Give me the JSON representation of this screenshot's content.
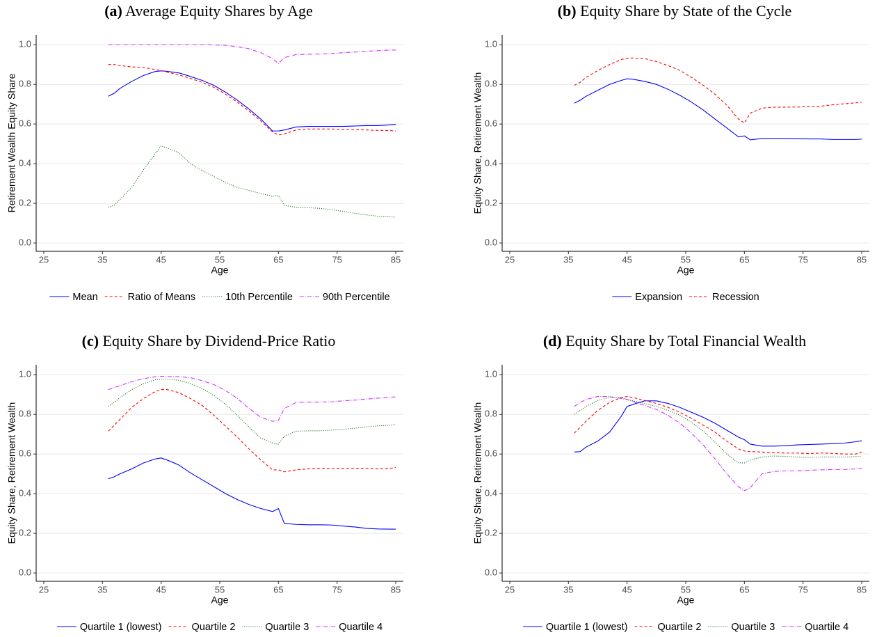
{
  "chart_data": [
    {
      "type": "line",
      "label": "(a)",
      "title": "Average Equity Shares by Age",
      "x_label": "Age",
      "y_label": "Retirement Wealth Equity Share",
      "x": [
        36,
        37,
        38,
        40,
        42,
        44,
        45,
        46,
        48,
        50,
        52,
        54,
        56,
        58,
        60,
        62,
        64,
        65,
        66,
        68,
        70,
        72,
        74,
        76,
        78,
        80,
        82,
        84,
        85
      ],
      "series": [
        {
          "name": "Mean",
          "color": "#0000ff",
          "linestyle": "solid",
          "values": [
            0.74,
            0.755,
            0.78,
            0.815,
            0.845,
            0.865,
            0.868,
            0.866,
            0.858,
            0.84,
            0.82,
            0.795,
            0.76,
            0.72,
            0.675,
            0.625,
            0.565,
            0.565,
            0.57,
            0.585,
            0.588,
            0.588,
            0.588,
            0.588,
            0.59,
            0.592,
            0.592,
            0.596,
            0.598
          ]
        },
        {
          "name": "Ratio of Means",
          "color": "#ff0000",
          "linestyle": "dashed",
          "values": [
            0.9,
            0.9,
            0.895,
            0.888,
            0.885,
            0.875,
            0.87,
            0.862,
            0.848,
            0.83,
            0.81,
            0.785,
            0.75,
            0.71,
            0.665,
            0.615,
            0.56,
            0.545,
            0.55,
            0.57,
            0.575,
            0.575,
            0.575,
            0.573,
            0.572,
            0.57,
            0.568,
            0.567,
            0.565
          ]
        },
        {
          "name": "10th Percentile",
          "color": "#006400",
          "linestyle": "dotted",
          "values": [
            0.18,
            0.19,
            0.22,
            0.28,
            0.37,
            0.45,
            0.49,
            0.48,
            0.455,
            0.4,
            0.365,
            0.335,
            0.305,
            0.28,
            0.265,
            0.25,
            0.235,
            0.24,
            0.19,
            0.18,
            0.178,
            0.175,
            0.168,
            0.16,
            0.15,
            0.142,
            0.135,
            0.132,
            0.13
          ]
        },
        {
          "name": "90th Percentile",
          "color": "#cc33ff",
          "linestyle": "dashdot",
          "values": [
            1.0,
            1.0,
            1.0,
            1.0,
            1.0,
            1.0,
            1.0,
            1.0,
            1.0,
            1.0,
            1.0,
            0.999,
            0.997,
            0.99,
            0.98,
            0.96,
            0.93,
            0.905,
            0.935,
            0.95,
            0.952,
            0.953,
            0.955,
            0.96,
            0.963,
            0.967,
            0.97,
            0.973,
            0.973
          ]
        }
      ],
      "xlim": [
        23.7,
        86.3
      ],
      "ylim": [
        -0.042,
        1.05
      ],
      "xticks": [
        25,
        35,
        45,
        55,
        65,
        75,
        85
      ],
      "yticks": [
        {
          "value": 0,
          "label": "0.0"
        },
        0.2,
        0.4,
        0.6,
        0.8,
        {
          "value": 1,
          "label": "1.0"
        }
      ],
      "grid": true,
      "legend": "bottom"
    },
    {
      "type": "line",
      "label": "(b)",
      "title": "Equity Share by State of the Cycle",
      "x_label": "Age",
      "y_label": "Equity Share, Retirement Wealth",
      "x": [
        36,
        37,
        38,
        40,
        42,
        44,
        45,
        46,
        48,
        50,
        52,
        54,
        56,
        58,
        60,
        62,
        64,
        65,
        66,
        68,
        70,
        72,
        74,
        76,
        78,
        80,
        82,
        84,
        85
      ],
      "series": [
        {
          "name": "Expansion",
          "color": "#0000ff",
          "linestyle": "solid",
          "values": [
            0.705,
            0.72,
            0.74,
            0.77,
            0.8,
            0.82,
            0.828,
            0.826,
            0.815,
            0.8,
            0.775,
            0.745,
            0.71,
            0.67,
            0.625,
            0.58,
            0.535,
            0.54,
            0.52,
            0.527,
            0.527,
            0.527,
            0.526,
            0.525,
            0.525,
            0.522,
            0.522,
            0.522,
            0.524
          ]
        },
        {
          "name": "Recession",
          "color": "#ff0000",
          "linestyle": "dashed",
          "values": [
            0.795,
            0.81,
            0.835,
            0.87,
            0.9,
            0.925,
            0.932,
            0.933,
            0.93,
            0.915,
            0.895,
            0.87,
            0.835,
            0.795,
            0.75,
            0.695,
            0.625,
            0.605,
            0.655,
            0.68,
            0.685,
            0.685,
            0.686,
            0.688,
            0.69,
            0.697,
            0.702,
            0.707,
            0.71
          ]
        }
      ],
      "xlim": [
        23.7,
        86.3
      ],
      "ylim": [
        -0.042,
        1.05
      ],
      "xticks": [
        25,
        35,
        45,
        55,
        65,
        75,
        85
      ],
      "yticks": [
        {
          "value": 0,
          "label": "0.0"
        },
        0.2,
        0.4,
        0.6,
        0.8,
        {
          "value": 1,
          "label": "1.0"
        }
      ],
      "grid": true,
      "legend": "bottom"
    },
    {
      "type": "line",
      "label": "(c)",
      "title": "Equity Share by Dividend-Price Ratio",
      "x_label": "Age",
      "y_label": "Equity Share, Retirement Wealth",
      "x": [
        36,
        37,
        38,
        40,
        42,
        44,
        45,
        46,
        48,
        50,
        52,
        54,
        56,
        58,
        60,
        62,
        64,
        65,
        66,
        68,
        70,
        72,
        74,
        76,
        78,
        80,
        82,
        84,
        85
      ],
      "series": [
        {
          "name": "Quartile 1 (lowest)",
          "color": "#0000ff",
          "linestyle": "solid",
          "values": [
            0.475,
            0.485,
            0.5,
            0.525,
            0.555,
            0.575,
            0.58,
            0.57,
            0.545,
            0.505,
            0.47,
            0.435,
            0.4,
            0.37,
            0.345,
            0.325,
            0.31,
            0.325,
            0.25,
            0.245,
            0.243,
            0.243,
            0.242,
            0.237,
            0.232,
            0.225,
            0.222,
            0.221,
            0.221
          ]
        },
        {
          "name": "Quartile 2",
          "color": "#ff0000",
          "linestyle": "dashed",
          "values": [
            0.715,
            0.745,
            0.775,
            0.835,
            0.88,
            0.915,
            0.925,
            0.925,
            0.91,
            0.88,
            0.845,
            0.795,
            0.74,
            0.685,
            0.625,
            0.57,
            0.52,
            0.52,
            0.51,
            0.52,
            0.525,
            0.527,
            0.527,
            0.527,
            0.528,
            0.528,
            0.525,
            0.527,
            0.533
          ]
        },
        {
          "name": "Quartile 3",
          "color": "#006400",
          "linestyle": "dotted",
          "values": [
            0.84,
            0.86,
            0.885,
            0.925,
            0.955,
            0.975,
            0.978,
            0.978,
            0.972,
            0.955,
            0.93,
            0.895,
            0.85,
            0.795,
            0.735,
            0.68,
            0.655,
            0.65,
            0.69,
            0.715,
            0.717,
            0.717,
            0.72,
            0.725,
            0.73,
            0.737,
            0.742,
            0.745,
            0.75
          ]
        },
        {
          "name": "Quartile 4",
          "color": "#cc33ff",
          "linestyle": "dashdot",
          "values": [
            0.925,
            0.935,
            0.945,
            0.965,
            0.98,
            0.99,
            0.992,
            0.99,
            0.99,
            0.985,
            0.97,
            0.95,
            0.92,
            0.88,
            0.83,
            0.785,
            0.765,
            0.77,
            0.83,
            0.86,
            0.862,
            0.862,
            0.863,
            0.868,
            0.872,
            0.877,
            0.882,
            0.886,
            0.888
          ]
        }
      ],
      "xlim": [
        23.7,
        86.3
      ],
      "ylim": [
        -0.042,
        1.05
      ],
      "xticks": [
        25,
        35,
        45,
        55,
        65,
        75,
        85
      ],
      "yticks": [
        {
          "value": 0,
          "label": "0.0"
        },
        0.2,
        0.4,
        0.6,
        0.8,
        {
          "value": 1,
          "label": "1.0"
        }
      ],
      "grid": true,
      "legend": "bottom"
    },
    {
      "type": "line",
      "label": "(d)",
      "title": "Equity Share by Total Financial Wealth",
      "x_label": "Age",
      "y_label": "Equity Share, Retirement Wealth",
      "x": [
        36,
        37,
        38,
        40,
        42,
        44,
        45,
        46,
        48,
        50,
        52,
        54,
        56,
        58,
        60,
        62,
        64,
        65,
        66,
        68,
        70,
        72,
        74,
        76,
        78,
        80,
        82,
        84,
        85
      ],
      "series": [
        {
          "name": "Quartile 1 (lowest)",
          "color": "#0000ff",
          "linestyle": "solid",
          "values": [
            0.61,
            0.612,
            0.635,
            0.665,
            0.71,
            0.79,
            0.84,
            0.85,
            0.868,
            0.868,
            0.855,
            0.835,
            0.81,
            0.785,
            0.755,
            0.72,
            0.685,
            0.672,
            0.65,
            0.64,
            0.64,
            0.642,
            0.646,
            0.648,
            0.65,
            0.652,
            0.655,
            0.662,
            0.667
          ]
        },
        {
          "name": "Quartile 2",
          "color": "#ff0000",
          "linestyle": "dashed",
          "values": [
            0.705,
            0.735,
            0.765,
            0.82,
            0.86,
            0.885,
            0.89,
            0.885,
            0.87,
            0.855,
            0.835,
            0.81,
            0.78,
            0.745,
            0.71,
            0.665,
            0.625,
            0.615,
            0.612,
            0.61,
            0.607,
            0.605,
            0.605,
            0.602,
            0.605,
            0.603,
            0.6,
            0.6,
            0.61
          ]
        },
        {
          "name": "Quartile 3",
          "color": "#006400",
          "linestyle": "dotted",
          "values": [
            0.8,
            0.82,
            0.84,
            0.87,
            0.885,
            0.885,
            0.875,
            0.868,
            0.855,
            0.84,
            0.82,
            0.795,
            0.76,
            0.715,
            0.66,
            0.6,
            0.555,
            0.555,
            0.57,
            0.585,
            0.59,
            0.588,
            0.585,
            0.583,
            0.585,
            0.585,
            0.585,
            0.587,
            0.588
          ]
        },
        {
          "name": "Quartile 4",
          "color": "#cc33ff",
          "linestyle": "dashdot",
          "values": [
            0.84,
            0.86,
            0.875,
            0.89,
            0.89,
            0.88,
            0.875,
            0.865,
            0.845,
            0.825,
            0.795,
            0.755,
            0.705,
            0.645,
            0.575,
            0.5,
            0.435,
            0.415,
            0.43,
            0.5,
            0.512,
            0.515,
            0.515,
            0.518,
            0.52,
            0.522,
            0.522,
            0.525,
            0.528
          ]
        }
      ],
      "xlim": [
        23.7,
        86.3
      ],
      "ylim": [
        -0.042,
        1.05
      ],
      "xticks": [
        25,
        35,
        45,
        55,
        65,
        75,
        85
      ],
      "yticks": [
        {
          "value": 0,
          "label": "0.0"
        },
        0.2,
        0.4,
        0.6,
        0.8,
        {
          "value": 1,
          "label": "1.0"
        }
      ],
      "grid": true,
      "legend": "bottom"
    }
  ]
}
